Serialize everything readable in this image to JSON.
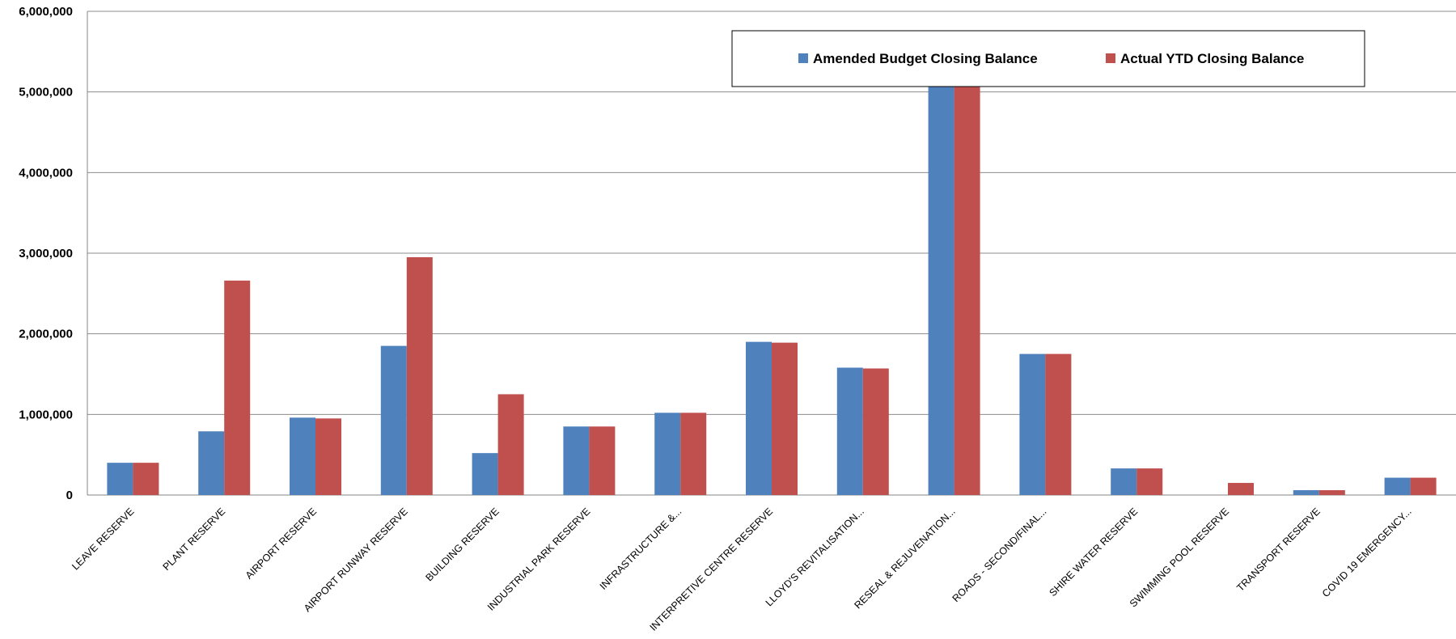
{
  "chart_data": {
    "type": "bar",
    "categories": [
      "LEAVE RESERVE",
      "PLANT RESERVE",
      "AIRPORT RESERVE",
      "AIRPORT RUNWAY RESERVE",
      "BUILDING RESERVE",
      "INDUSTRIAL PARK RESERVE",
      "INFRASTRUCTURE &...",
      "INTERPRETIVE CENTRE RESERVE",
      "LLOYD'S REVITALISATION...",
      "RESEAL & REJUVENATION...",
      "ROADS - SECOND/FINAL...",
      "SHIRE WATER RESERVE",
      "SWIMMING POOL RESERVE",
      "TRANSPORT RESERVE",
      "COVID 19 EMERGENCY..."
    ],
    "series": [
      {
        "name": "Amended Budget Closing Balance",
        "color": "#4F81BD",
        "values": [
          400000,
          790000,
          960000,
          1850000,
          520000,
          850000,
          1020000,
          1900000,
          1580000,
          5500000,
          1750000,
          330000,
          0,
          60000,
          215000
        ]
      },
      {
        "name": "Actual YTD Closing Balance",
        "color": "#C0504D",
        "values": [
          400000,
          2660000,
          950000,
          2950000,
          1250000,
          850000,
          1020000,
          1890000,
          1570000,
          5500000,
          1750000,
          330000,
          150000,
          60000,
          215000
        ]
      }
    ],
    "yticks": [
      "0",
      "1,000,000",
      "2,000,000",
      "3,000,000",
      "4,000,000",
      "5,000,000",
      "6,000,000"
    ],
    "ylim": [
      0,
      6000000
    ],
    "grid": true,
    "legend": "top-right",
    "title": "",
    "xlabel": "",
    "ylabel": ""
  }
}
